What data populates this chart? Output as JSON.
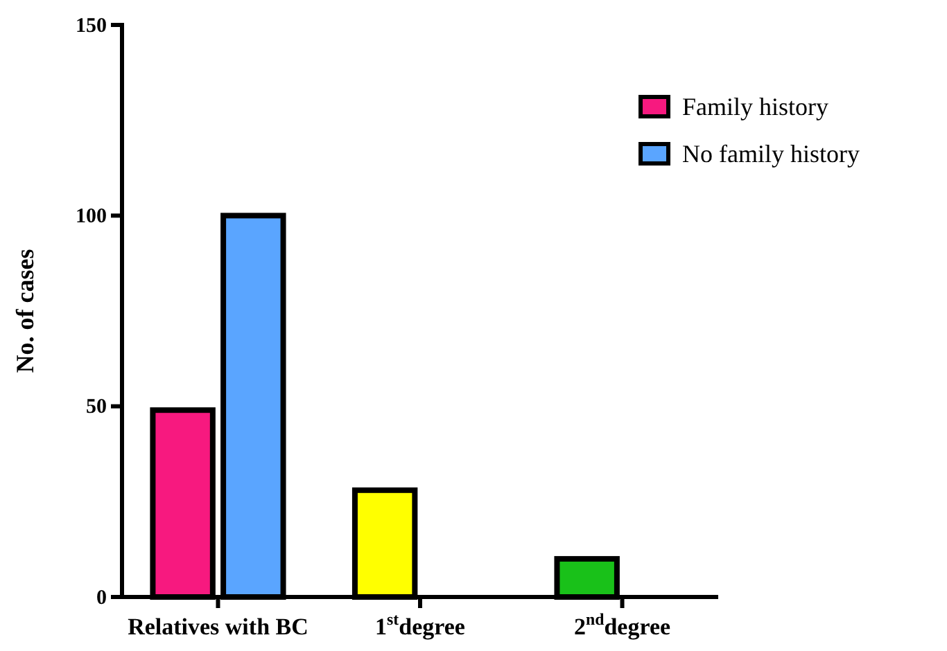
{
  "chart_data": {
    "type": "bar",
    "ylabel": "No. of cases",
    "categories": [
      "Relatives with BC",
      "1$^{st}$degree",
      "2$^{nd}$degree"
    ],
    "series": [
      {
        "name": "Family history",
        "color": "#f7197f",
        "colors": [
          "#f7197f",
          "#ffff00",
          "#19c119"
        ],
        "values": [
          49,
          28,
          10
        ]
      },
      {
        "name": "No family history",
        "color": "#5aa5ff",
        "values": [
          100,
          null,
          null
        ]
      }
    ],
    "ylim": [
      0,
      150
    ],
    "yticks": [
      0,
      50,
      100,
      150
    ],
    "grid": false,
    "legend": "top right"
  }
}
